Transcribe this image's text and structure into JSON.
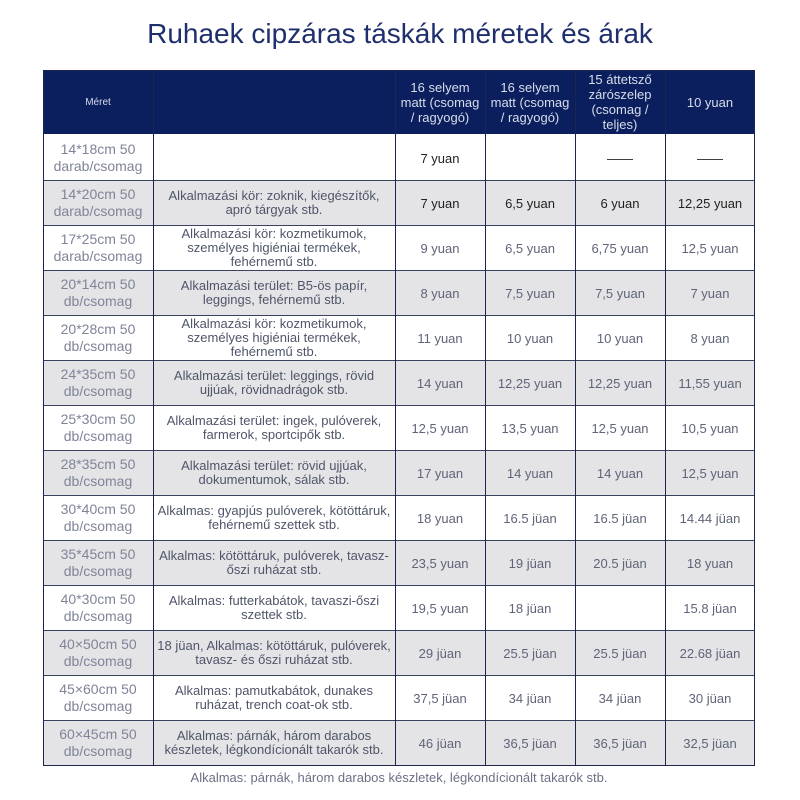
{
  "title": "Ruhaek cipzáras táskák méretek és árak",
  "header": {
    "size": "Méret",
    "col1": "16 selyem matt (csomag / ragyogó)",
    "col2": "16 selyem matt (csomag / ragyogó)",
    "col3": "15 áttetsző zárószelep (csomag / teljes)",
    "col4": "10 yuan"
  },
  "rows": [
    {
      "size": "14*18cm 50 darab/csomag",
      "p": [
        "7 yuan",
        "",
        "——",
        "——"
      ],
      "app": ""
    },
    {
      "size": "14*20cm 50 darab/csomag",
      "p": [
        "7 yuan",
        "6,5 yuan",
        "6 yuan",
        "12,25 yuan"
      ],
      "app": "Alkalmazási kör: zoknik, kiegészítők, apró tárgyak stb."
    },
    {
      "size": "17*25cm 50 darab/csomag",
      "p": [
        "9 yuan",
        "6,5 yuan",
        "6,75 yuan",
        "12,5 yuan"
      ],
      "app": "Alkalmazási kör: kozmetikumok, személyes higiéniai termékek, fehérnemű stb."
    },
    {
      "size": "20*14cm 50 db/csomag",
      "p": [
        "8 yuan",
        "7,5 yuan",
        "7,5 yuan",
        "7 yuan"
      ],
      "app": "Alkalmazási terület: B5-ös papír, leggings, fehérnemű stb."
    },
    {
      "size": "20*28cm 50 db/csomag",
      "p": [
        "11 yuan",
        "10 yuan",
        "10 yuan",
        "8 yuan"
      ],
      "app": "Alkalmazási kör: kozmetikumok, személyes higiéniai termékek, fehérnemű stb."
    },
    {
      "size": "24*35cm 50 db/csomag",
      "p": [
        "14 yuan",
        "12,25 yuan",
        "12,25 yuan",
        "11,55 yuan"
      ],
      "app": "Alkalmazási terület: leggings, rövid ujjúak, rövidnadrágok stb."
    },
    {
      "size": "25*30cm 50 db/csomag",
      "p": [
        "12,5 yuan",
        "13,5 yuan",
        "12,5 yuan",
        "10,5 yuan"
      ],
      "app": "Alkalmazási terület: ingek, pulóverek, farmerok, sportcipők stb."
    },
    {
      "size": "28*35cm 50 db/csomag",
      "p": [
        "17 yuan",
        "14 yuan",
        "14 yuan",
        "12,5 yuan"
      ],
      "app": "Alkalmazási terület: rövid ujjúak, dokumentumok, sálak stb."
    },
    {
      "size": "30*40cm 50 db/csomag",
      "p": [
        "18 yuan",
        "16.5 jüan",
        "16.5 jüan",
        "14.44 jüan"
      ],
      "app": "Alkalmas: gyapjús pulóverek, kötöttáruk, fehérnemű szettek stb."
    },
    {
      "size": "35*45cm 50 db/csomag",
      "p": [
        "23,5 yuan",
        "19 jüan",
        "20.5 jüan",
        "18 yuan"
      ],
      "app": "Alkalmas: kötöttáruk, pulóverek, tavasz-őszi ruházat stb."
    },
    {
      "size": "40*30cm 50 db/csomag",
      "p": [
        "19,5 yuan",
        "18 jüan",
        "",
        "15.8 jüan"
      ],
      "app": "Alkalmas: futterkabátok, tavaszi-őszi szettek stb."
    },
    {
      "size": "40×50cm 50 db/csomag",
      "p": [
        "29 jüan",
        "25.5 jüan",
        "25.5 jüan",
        "22.68 jüan"
      ],
      "app": "18 jüan, Alkalmas: kötöttáruk, pulóverek, tavasz- és őszi ruházat stb."
    },
    {
      "size": "45×60cm 50 db/csomag",
      "p": [
        "37,5 jüan",
        "34 jüan",
        "34 jüan",
        "30 jüan"
      ],
      "app": "Alkalmas: pamutkabátok, dunakes ruházat, trench coat-ok stb."
    },
    {
      "size": "60×45cm 50 db/csomag",
      "p": [
        "46 jüan",
        "36,5 jüan",
        "36,5 jüan",
        "32,5 jüan"
      ],
      "app": "Alkalmas: párnák, három darabos készletek, légkondícionált takarók stb."
    }
  ],
  "footer": "Alkalmas: párnák, három darabos készletek, légkondícionált takarók stb.",
  "colors": {
    "header_bg": "#0b1f5e",
    "title": "#1f2f6e",
    "row_gray": "#e4e4e6"
  }
}
